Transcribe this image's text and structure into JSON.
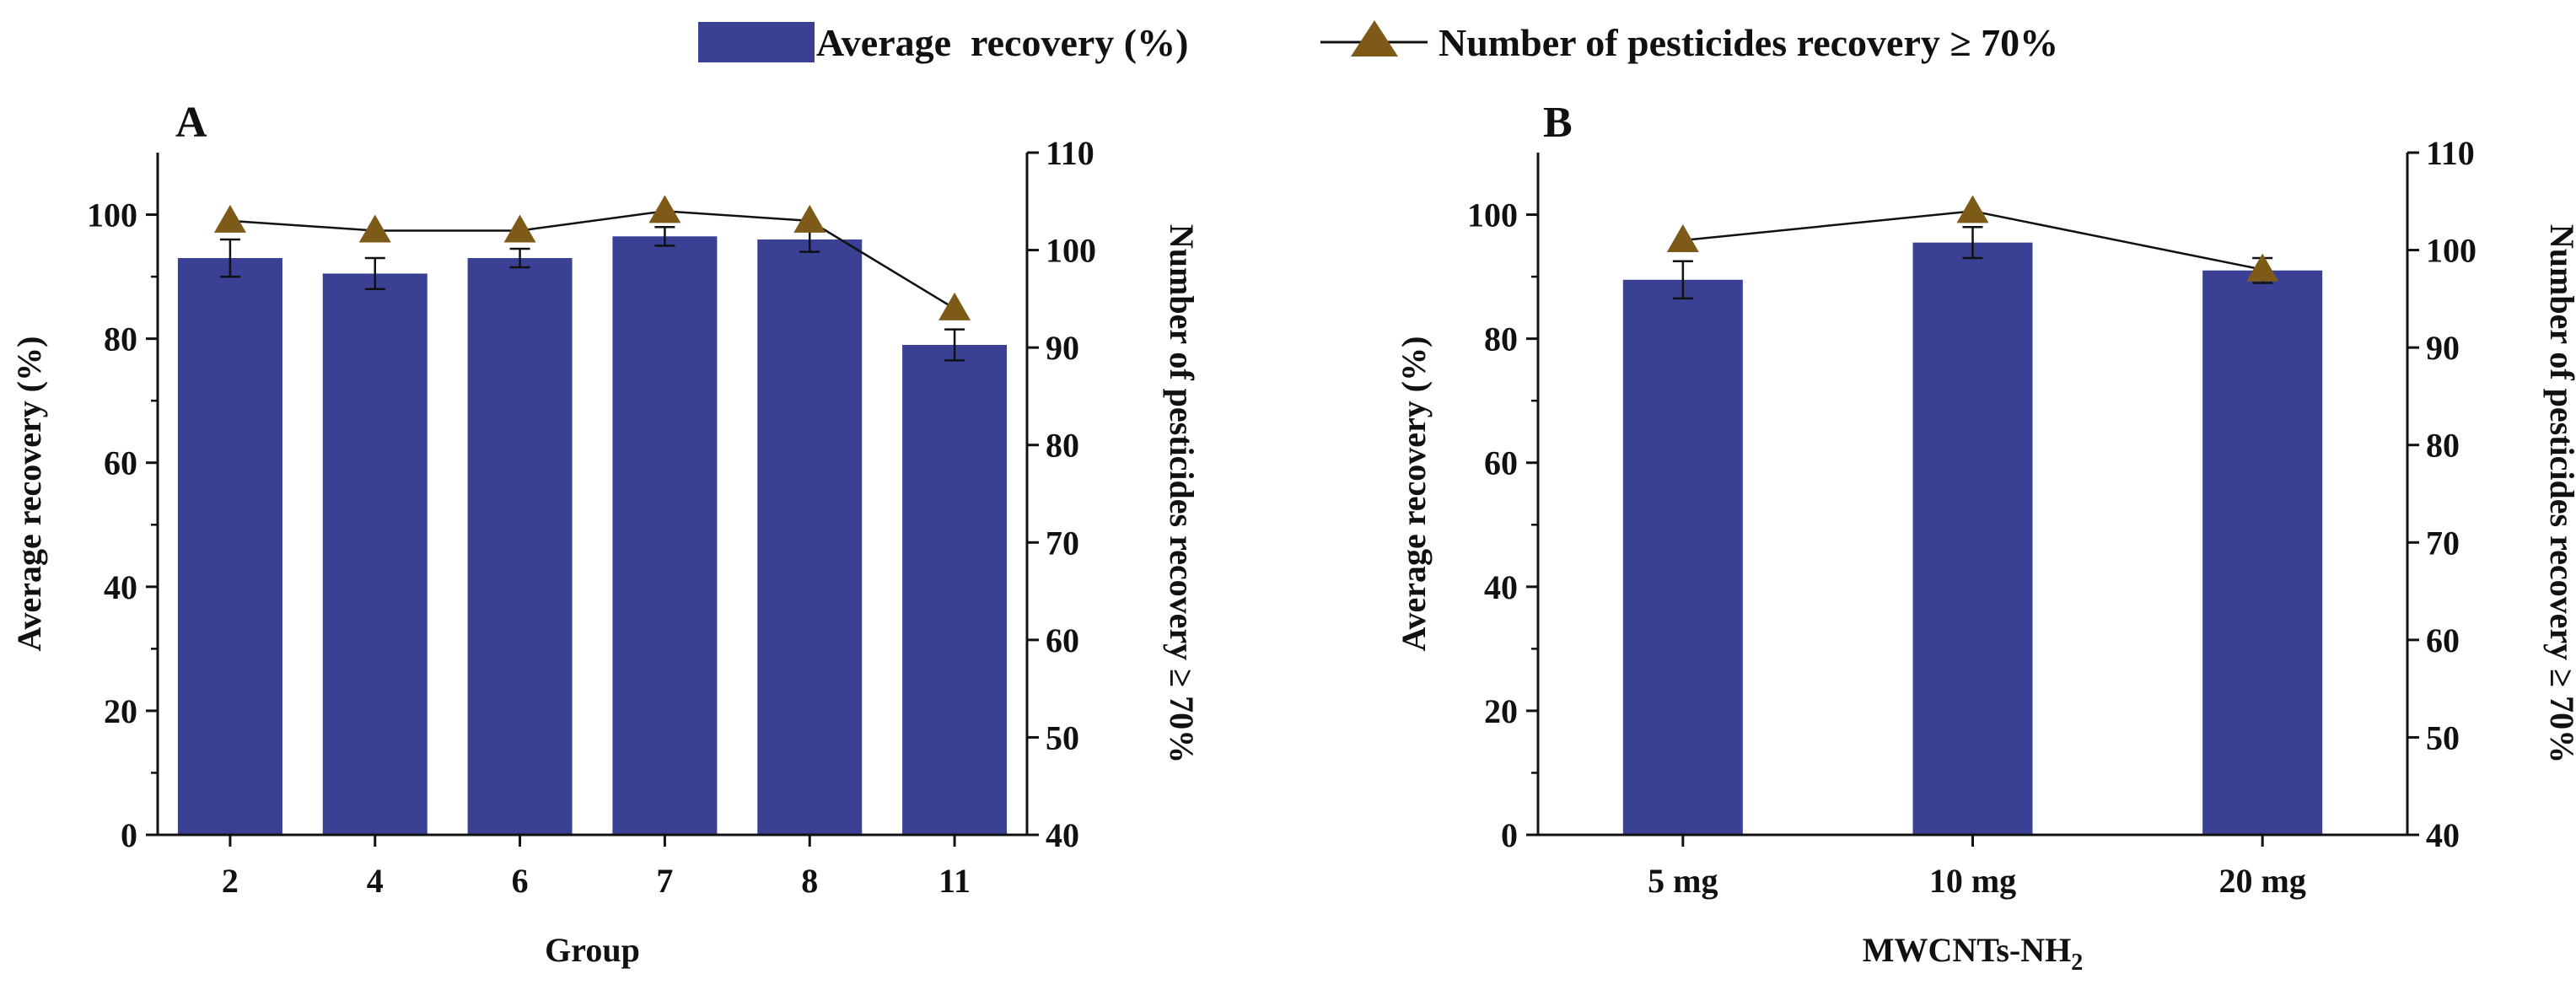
{
  "legend": {
    "bar_label": "Average  recovery (%)",
    "line_label": "Number of pesticides recovery ≥ 70%"
  },
  "colors": {
    "bar": "#3a4195",
    "marker": "#7d5a18",
    "line": "#111111",
    "axis": "#111111"
  },
  "chart_data": [
    {
      "panel": "A",
      "type": "bar",
      "xlabel": "Group",
      "ylabel": "Average recovery (%)",
      "y2label": "Number of pesticides recovery ≥ 70%",
      "categories": [
        "2",
        "4",
        "6",
        "7",
        "8",
        "11"
      ],
      "ylim": [
        0,
        110
      ],
      "yticks": [
        0,
        20,
        40,
        60,
        80,
        100
      ],
      "y2lim": [
        40,
        110
      ],
      "y2ticks": [
        40,
        50,
        60,
        70,
        80,
        90,
        100,
        110
      ],
      "series": [
        {
          "name": "Average  recovery (%)",
          "type": "bar",
          "axis": "left",
          "values": [
            93,
            90.5,
            93,
            96.5,
            96,
            79
          ],
          "errors": [
            3,
            2.5,
            1.5,
            1.5,
            2,
            2.5
          ]
        },
        {
          "name": "Number of pesticides recovery ≥ 70%",
          "type": "line",
          "axis": "right",
          "values": [
            103,
            102,
            102,
            104,
            103,
            94
          ]
        }
      ]
    },
    {
      "panel": "B",
      "type": "bar",
      "xlabel": "MWCNTs-NH",
      "xlabel_sub": "2",
      "ylabel": "Average recovery (%)",
      "y2label": "Number of pesticides recovery ≥ 70%",
      "categories": [
        "5 mg",
        "10 mg",
        "20 mg"
      ],
      "ylim": [
        0,
        110
      ],
      "yticks": [
        0,
        20,
        40,
        60,
        80,
        100
      ],
      "y2lim": [
        40,
        110
      ],
      "y2ticks": [
        40,
        50,
        60,
        70,
        80,
        90,
        100,
        110
      ],
      "series": [
        {
          "name": "Average  recovery (%)",
          "type": "bar",
          "axis": "left",
          "values": [
            89.5,
            95.5,
            91
          ],
          "errors": [
            3,
            2.5,
            2
          ]
        },
        {
          "name": "Number of pesticides recovery ≥ 70%",
          "type": "line",
          "axis": "right",
          "values": [
            101,
            104,
            98
          ]
        }
      ]
    }
  ]
}
